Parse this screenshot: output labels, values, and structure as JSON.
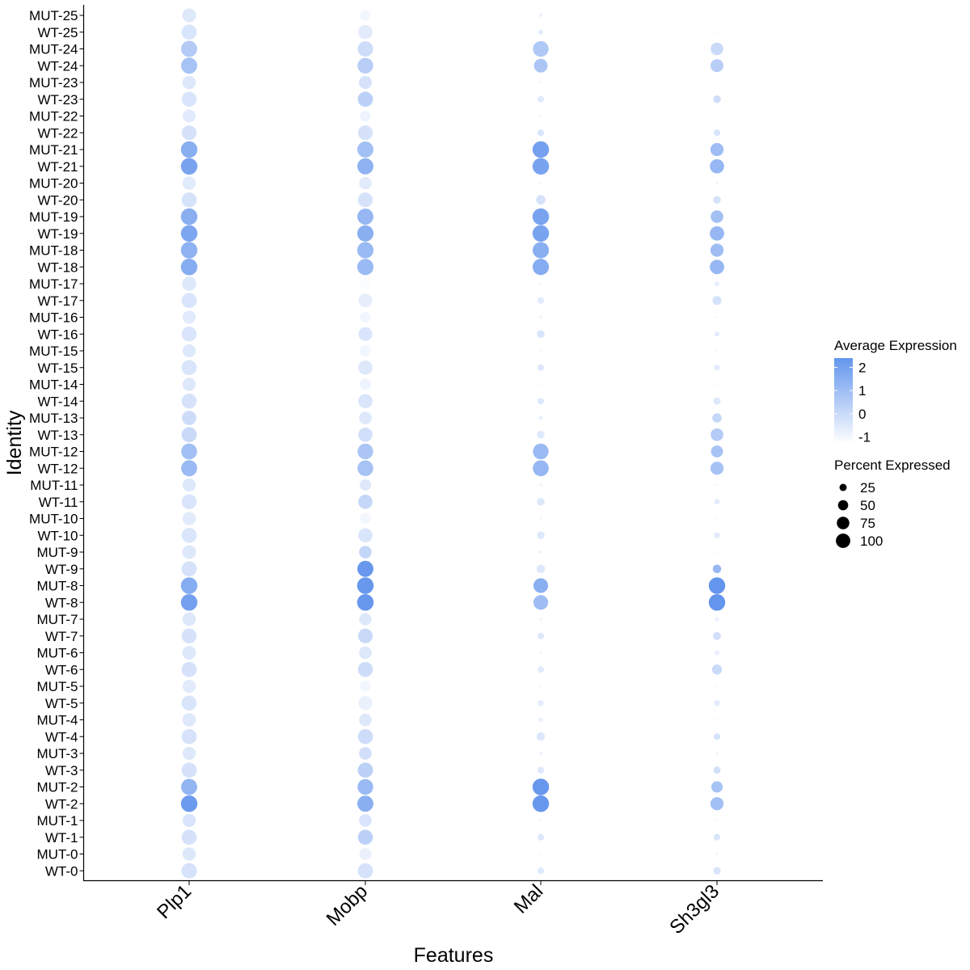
{
  "chart_data": {
    "type": "dot",
    "xlabel": "Features",
    "ylabel": "Identity",
    "features": [
      "Plp1",
      "Mobp",
      "Mal",
      "Sh3gl3"
    ],
    "identities": [
      "MUT-25",
      "WT-25",
      "MUT-24",
      "WT-24",
      "MUT-23",
      "WT-23",
      "MUT-22",
      "WT-22",
      "MUT-21",
      "WT-21",
      "MUT-20",
      "WT-20",
      "MUT-19",
      "WT-19",
      "MUT-18",
      "WT-18",
      "MUT-17",
      "WT-17",
      "MUT-16",
      "WT-16",
      "MUT-15",
      "WT-15",
      "MUT-14",
      "WT-14",
      "MUT-13",
      "WT-13",
      "MUT-12",
      "WT-12",
      "MUT-11",
      "WT-11",
      "MUT-10",
      "WT-10",
      "MUT-9",
      "WT-9",
      "MUT-8",
      "WT-8",
      "MUT-7",
      "WT-7",
      "MUT-6",
      "WT-6",
      "MUT-5",
      "WT-5",
      "MUT-4",
      "WT-4",
      "MUT-3",
      "WT-3",
      "MUT-2",
      "WT-2",
      "MUT-1",
      "WT-1",
      "MUT-0",
      "WT-0"
    ],
    "avg_expression": [
      [
        -0.5,
        -1.0,
        -0.8,
        -1.0
      ],
      [
        -0.4,
        -0.6,
        -0.6,
        -1.0
      ],
      [
        0.5,
        -0.1,
        0.6,
        0.0
      ],
      [
        0.8,
        0.4,
        0.7,
        0.4
      ],
      [
        -0.5,
        -0.3,
        -1.0,
        -1.0
      ],
      [
        -0.4,
        0.3,
        -0.6,
        -0.1
      ],
      [
        -0.6,
        -0.9,
        -1.0,
        -1.0
      ],
      [
        -0.3,
        -0.3,
        -0.4,
        -0.4
      ],
      [
        1.5,
        0.9,
        2.0,
        1.0
      ],
      [
        1.9,
        1.4,
        1.9,
        1.2
      ],
      [
        -0.6,
        -0.6,
        -1.0,
        -0.9
      ],
      [
        -0.3,
        -0.3,
        -0.3,
        -0.3
      ],
      [
        1.5,
        1.2,
        1.9,
        0.9
      ],
      [
        1.8,
        1.5,
        1.9,
        1.2
      ],
      [
        1.4,
        1.1,
        1.5,
        1.0
      ],
      [
        1.6,
        1.1,
        1.6,
        1.2
      ],
      [
        -0.5,
        -1.2,
        -1.0,
        -0.7
      ],
      [
        -0.4,
        -0.7,
        -0.6,
        -0.3
      ],
      [
        -0.6,
        -1.0,
        -1.0,
        -1.0
      ],
      [
        -0.4,
        -0.4,
        -0.4,
        -0.6
      ],
      [
        -0.5,
        -1.0,
        -1.0,
        -1.0
      ],
      [
        -0.4,
        -0.5,
        -0.5,
        -0.6
      ],
      [
        -0.5,
        -0.9,
        -1.0,
        -1.0
      ],
      [
        -0.3,
        -0.4,
        -0.5,
        -0.5
      ],
      [
        -0.1,
        -0.5,
        -0.8,
        0.1
      ],
      [
        0.0,
        -0.2,
        -0.5,
        0.5
      ],
      [
        0.9,
        0.7,
        1.1,
        0.8
      ],
      [
        1.1,
        0.8,
        1.2,
        0.8
      ],
      [
        -0.5,
        -0.5,
        -1.0,
        -1.0
      ],
      [
        -0.4,
        0.1,
        -0.5,
        -0.6
      ],
      [
        -0.6,
        -1.0,
        -1.0,
        -1.0
      ],
      [
        -0.4,
        -0.4,
        -0.5,
        -0.6
      ],
      [
        -0.5,
        0.1,
        -0.9,
        -1.0
      ],
      [
        -0.3,
        2.3,
        -0.5,
        1.2
      ],
      [
        1.6,
        2.3,
        1.5,
        2.4
      ],
      [
        2.0,
        2.3,
        1.0,
        2.4
      ],
      [
        -0.5,
        -0.5,
        -1.0,
        -0.8
      ],
      [
        -0.3,
        0.0,
        -0.5,
        -0.2
      ],
      [
        -0.5,
        -0.5,
        -1.0,
        -0.7
      ],
      [
        -0.3,
        -0.1,
        -0.6,
        0.0
      ],
      [
        -0.6,
        -1.0,
        -1.0,
        -1.0
      ],
      [
        -0.4,
        -0.8,
        -0.6,
        -0.6
      ],
      [
        -0.5,
        -0.5,
        -0.8,
        -1.0
      ],
      [
        -0.3,
        -0.1,
        -0.5,
        -0.3
      ],
      [
        -0.5,
        -0.2,
        -0.9,
        -1.0
      ],
      [
        -0.3,
        0.3,
        -0.5,
        -0.2
      ],
      [
        1.3,
        1.1,
        2.3,
        0.8
      ],
      [
        2.2,
        1.5,
        2.3,
        0.9
      ],
      [
        -0.4,
        -0.4,
        -1.0,
        -1.0
      ],
      [
        -0.3,
        0.3,
        -0.5,
        -0.4
      ],
      [
        -0.5,
        -0.8,
        -1.0,
        -0.9
      ],
      [
        -0.3,
        -0.3,
        -0.5,
        -0.4
      ]
    ],
    "pct_expressed": [
      [
        65,
        40,
        4,
        1
      ],
      [
        80,
        70,
        8,
        2
      ],
      [
        90,
        82,
        85,
        55
      ],
      [
        90,
        85,
        65,
        58
      ],
      [
        62,
        58,
        3,
        1
      ],
      [
        78,
        80,
        15,
        20
      ],
      [
        58,
        40,
        2,
        1
      ],
      [
        75,
        75,
        15,
        15
      ],
      [
        95,
        90,
        95,
        60
      ],
      [
        95,
        90,
        95,
        70
      ],
      [
        62,
        55,
        3,
        2
      ],
      [
        78,
        75,
        30,
        20
      ],
      [
        95,
        90,
        95,
        55
      ],
      [
        95,
        92,
        95,
        72
      ],
      [
        95,
        92,
        92,
        60
      ],
      [
        95,
        92,
        92,
        72
      ],
      [
        70,
        38,
        2,
        8
      ],
      [
        80,
        65,
        15,
        28
      ],
      [
        60,
        40,
        4,
        2
      ],
      [
        76,
        65,
        20,
        8
      ],
      [
        60,
        45,
        3,
        2
      ],
      [
        80,
        70,
        15,
        12
      ],
      [
        60,
        45,
        2,
        2
      ],
      [
        78,
        70,
        14,
        18
      ],
      [
        72,
        55,
        5,
        30
      ],
      [
        80,
        70,
        20,
        55
      ],
      [
        88,
        85,
        85,
        50
      ],
      [
        90,
        87,
        88,
        60
      ],
      [
        60,
        45,
        4,
        2
      ],
      [
        78,
        70,
        20,
        10
      ],
      [
        62,
        40,
        3,
        2
      ],
      [
        78,
        70,
        20,
        12
      ],
      [
        65,
        55,
        4,
        2
      ],
      [
        80,
        90,
        25,
        25
      ],
      [
        95,
        95,
        75,
        95
      ],
      [
        95,
        95,
        75,
        95
      ],
      [
        62,
        52,
        3,
        6
      ],
      [
        78,
        75,
        15,
        22
      ],
      [
        65,
        55,
        3,
        8
      ],
      [
        80,
        78,
        15,
        35
      ],
      [
        62,
        40,
        2,
        2
      ],
      [
        78,
        68,
        12,
        12
      ],
      [
        62,
        55,
        8,
        2
      ],
      [
        80,
        78,
        25,
        15
      ],
      [
        60,
        55,
        4,
        3
      ],
      [
        80,
        80,
        15,
        18
      ],
      [
        90,
        85,
        95,
        45
      ],
      [
        95,
        90,
        95,
        60
      ],
      [
        60,
        55,
        3,
        2
      ],
      [
        78,
        78,
        15,
        15
      ],
      [
        62,
        50,
        2,
        2
      ],
      [
        82,
        80,
        15,
        20
      ]
    ],
    "legend": {
      "color_title": "Average Expression",
      "color_ticks": [
        "2",
        "1",
        "0",
        "-1"
      ],
      "low_color": "#ffffff",
      "high_color": "#6495ED",
      "size_title": "Percent Expressed",
      "size_ticks": [
        "25",
        "50",
        "75",
        "100"
      ]
    },
    "color_range": [
      -1.3,
      2.4
    ],
    "legend_placement": "right",
    "grid": false
  }
}
